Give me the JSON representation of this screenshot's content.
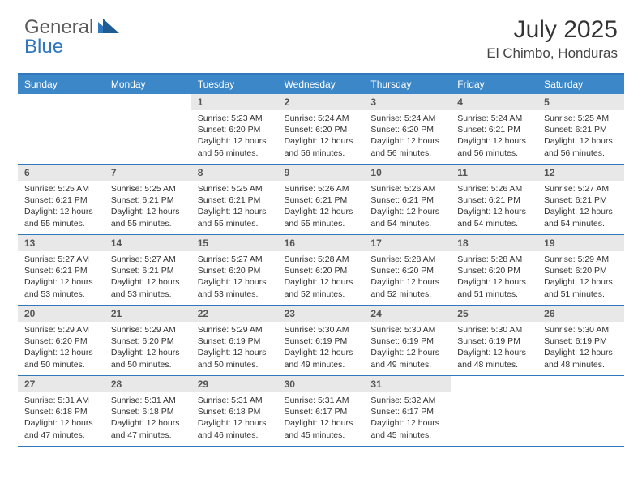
{
  "logo": {
    "general": "General",
    "blue": "Blue"
  },
  "title": "July 2025",
  "location": "El Chimbo, Honduras",
  "colors": {
    "header_bg": "#3b87c8",
    "border": "#2f78bd",
    "daynum_bg": "#e8e8e8",
    "text": "#333333"
  },
  "day_names": [
    "Sunday",
    "Monday",
    "Tuesday",
    "Wednesday",
    "Thursday",
    "Friday",
    "Saturday"
  ],
  "weeks": [
    [
      {
        "n": "",
        "sunrise": "",
        "sunset": "",
        "daylight": "",
        "empty": true
      },
      {
        "n": "",
        "sunrise": "",
        "sunset": "",
        "daylight": "",
        "empty": true
      },
      {
        "n": "1",
        "sunrise": "Sunrise: 5:23 AM",
        "sunset": "Sunset: 6:20 PM",
        "daylight": "Daylight: 12 hours and 56 minutes."
      },
      {
        "n": "2",
        "sunrise": "Sunrise: 5:24 AM",
        "sunset": "Sunset: 6:20 PM",
        "daylight": "Daylight: 12 hours and 56 minutes."
      },
      {
        "n": "3",
        "sunrise": "Sunrise: 5:24 AM",
        "sunset": "Sunset: 6:20 PM",
        "daylight": "Daylight: 12 hours and 56 minutes."
      },
      {
        "n": "4",
        "sunrise": "Sunrise: 5:24 AM",
        "sunset": "Sunset: 6:21 PM",
        "daylight": "Daylight: 12 hours and 56 minutes."
      },
      {
        "n": "5",
        "sunrise": "Sunrise: 5:25 AM",
        "sunset": "Sunset: 6:21 PM",
        "daylight": "Daylight: 12 hours and 56 minutes."
      }
    ],
    [
      {
        "n": "6",
        "sunrise": "Sunrise: 5:25 AM",
        "sunset": "Sunset: 6:21 PM",
        "daylight": "Daylight: 12 hours and 55 minutes."
      },
      {
        "n": "7",
        "sunrise": "Sunrise: 5:25 AM",
        "sunset": "Sunset: 6:21 PM",
        "daylight": "Daylight: 12 hours and 55 minutes."
      },
      {
        "n": "8",
        "sunrise": "Sunrise: 5:25 AM",
        "sunset": "Sunset: 6:21 PM",
        "daylight": "Daylight: 12 hours and 55 minutes."
      },
      {
        "n": "9",
        "sunrise": "Sunrise: 5:26 AM",
        "sunset": "Sunset: 6:21 PM",
        "daylight": "Daylight: 12 hours and 55 minutes."
      },
      {
        "n": "10",
        "sunrise": "Sunrise: 5:26 AM",
        "sunset": "Sunset: 6:21 PM",
        "daylight": "Daylight: 12 hours and 54 minutes."
      },
      {
        "n": "11",
        "sunrise": "Sunrise: 5:26 AM",
        "sunset": "Sunset: 6:21 PM",
        "daylight": "Daylight: 12 hours and 54 minutes."
      },
      {
        "n": "12",
        "sunrise": "Sunrise: 5:27 AM",
        "sunset": "Sunset: 6:21 PM",
        "daylight": "Daylight: 12 hours and 54 minutes."
      }
    ],
    [
      {
        "n": "13",
        "sunrise": "Sunrise: 5:27 AM",
        "sunset": "Sunset: 6:21 PM",
        "daylight": "Daylight: 12 hours and 53 minutes."
      },
      {
        "n": "14",
        "sunrise": "Sunrise: 5:27 AM",
        "sunset": "Sunset: 6:21 PM",
        "daylight": "Daylight: 12 hours and 53 minutes."
      },
      {
        "n": "15",
        "sunrise": "Sunrise: 5:27 AM",
        "sunset": "Sunset: 6:20 PM",
        "daylight": "Daylight: 12 hours and 53 minutes."
      },
      {
        "n": "16",
        "sunrise": "Sunrise: 5:28 AM",
        "sunset": "Sunset: 6:20 PM",
        "daylight": "Daylight: 12 hours and 52 minutes."
      },
      {
        "n": "17",
        "sunrise": "Sunrise: 5:28 AM",
        "sunset": "Sunset: 6:20 PM",
        "daylight": "Daylight: 12 hours and 52 minutes."
      },
      {
        "n": "18",
        "sunrise": "Sunrise: 5:28 AM",
        "sunset": "Sunset: 6:20 PM",
        "daylight": "Daylight: 12 hours and 51 minutes."
      },
      {
        "n": "19",
        "sunrise": "Sunrise: 5:29 AM",
        "sunset": "Sunset: 6:20 PM",
        "daylight": "Daylight: 12 hours and 51 minutes."
      }
    ],
    [
      {
        "n": "20",
        "sunrise": "Sunrise: 5:29 AM",
        "sunset": "Sunset: 6:20 PM",
        "daylight": "Daylight: 12 hours and 50 minutes."
      },
      {
        "n": "21",
        "sunrise": "Sunrise: 5:29 AM",
        "sunset": "Sunset: 6:20 PM",
        "daylight": "Daylight: 12 hours and 50 minutes."
      },
      {
        "n": "22",
        "sunrise": "Sunrise: 5:29 AM",
        "sunset": "Sunset: 6:19 PM",
        "daylight": "Daylight: 12 hours and 50 minutes."
      },
      {
        "n": "23",
        "sunrise": "Sunrise: 5:30 AM",
        "sunset": "Sunset: 6:19 PM",
        "daylight": "Daylight: 12 hours and 49 minutes."
      },
      {
        "n": "24",
        "sunrise": "Sunrise: 5:30 AM",
        "sunset": "Sunset: 6:19 PM",
        "daylight": "Daylight: 12 hours and 49 minutes."
      },
      {
        "n": "25",
        "sunrise": "Sunrise: 5:30 AM",
        "sunset": "Sunset: 6:19 PM",
        "daylight": "Daylight: 12 hours and 48 minutes."
      },
      {
        "n": "26",
        "sunrise": "Sunrise: 5:30 AM",
        "sunset": "Sunset: 6:19 PM",
        "daylight": "Daylight: 12 hours and 48 minutes."
      }
    ],
    [
      {
        "n": "27",
        "sunrise": "Sunrise: 5:31 AM",
        "sunset": "Sunset: 6:18 PM",
        "daylight": "Daylight: 12 hours and 47 minutes."
      },
      {
        "n": "28",
        "sunrise": "Sunrise: 5:31 AM",
        "sunset": "Sunset: 6:18 PM",
        "daylight": "Daylight: 12 hours and 47 minutes."
      },
      {
        "n": "29",
        "sunrise": "Sunrise: 5:31 AM",
        "sunset": "Sunset: 6:18 PM",
        "daylight": "Daylight: 12 hours and 46 minutes."
      },
      {
        "n": "30",
        "sunrise": "Sunrise: 5:31 AM",
        "sunset": "Sunset: 6:17 PM",
        "daylight": "Daylight: 12 hours and 45 minutes."
      },
      {
        "n": "31",
        "sunrise": "Sunrise: 5:32 AM",
        "sunset": "Sunset: 6:17 PM",
        "daylight": "Daylight: 12 hours and 45 minutes."
      },
      {
        "n": "",
        "sunrise": "",
        "sunset": "",
        "daylight": "",
        "empty": true
      },
      {
        "n": "",
        "sunrise": "",
        "sunset": "",
        "daylight": "",
        "empty": true
      }
    ]
  ]
}
